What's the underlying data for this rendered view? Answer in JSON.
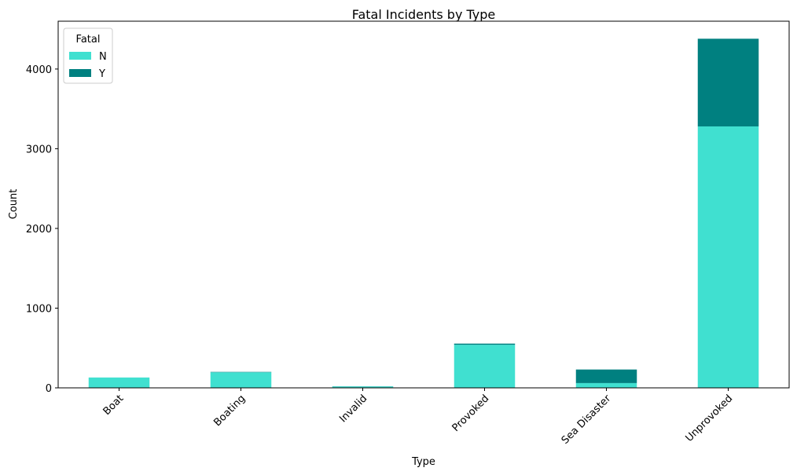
{
  "chart_data": {
    "type": "bar",
    "stacked": true,
    "title": "Fatal Incidents by Type",
    "xlabel": "Type",
    "ylabel": "Count",
    "categories": [
      "Boat",
      "Boating",
      "Invalid",
      "Provoked",
      "Sea Disaster",
      "Unprovoked"
    ],
    "series": [
      {
        "name": "N",
        "color": "#40e0d0",
        "values": [
          130,
          195,
          18,
          540,
          60,
          3280
        ]
      },
      {
        "name": "Y",
        "color": "#008080",
        "values": [
          0,
          5,
          2,
          15,
          170,
          1100
        ]
      }
    ],
    "ylim": [
      0,
      4600
    ],
    "yticks": [
      0,
      1000,
      2000,
      3000,
      4000
    ],
    "grid": false,
    "legend": {
      "title": "Fatal",
      "placement": "top-left"
    },
    "xtick_rotation": -45
  }
}
